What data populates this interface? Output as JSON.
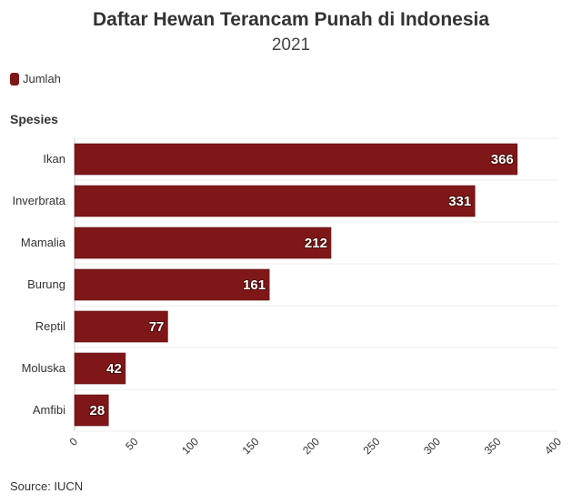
{
  "chart_data": {
    "type": "bar",
    "orientation": "horizontal",
    "title": "Daftar Hewan Terancam Punah di Indonesia",
    "subtitle": "2021",
    "ylabel": "Spesies",
    "categories": [
      "Ikan",
      "Inverbrata",
      "Mamalia",
      "Burung",
      "Reptil",
      "Moluska",
      "Amfibi"
    ],
    "series": [
      {
        "name": "Jumlah",
        "values": [
          366,
          331,
          212,
          161,
          77,
          42,
          28
        ],
        "color": "#7f1718"
      }
    ],
    "xlim": [
      0,
      400
    ],
    "xticks": [
      0,
      50,
      100,
      150,
      200,
      250,
      300,
      350,
      400
    ],
    "grid": true,
    "legend_position": "top-left",
    "source": "Source: IUCN"
  }
}
